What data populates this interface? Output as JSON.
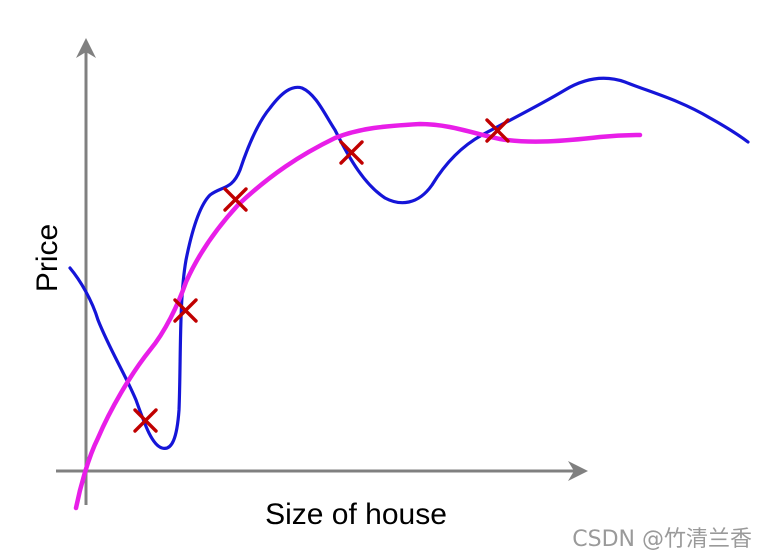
{
  "axes": {
    "x_label": "Size of house",
    "y_label": "Price"
  },
  "colors": {
    "axis": "#808080",
    "overfit_curve": "#1515d8",
    "smooth_curve": "#e81ee8",
    "data_marker": "#c00000"
  },
  "legend": null,
  "data_points_count": 5,
  "watermark": "CSDN @竹清兰香"
}
